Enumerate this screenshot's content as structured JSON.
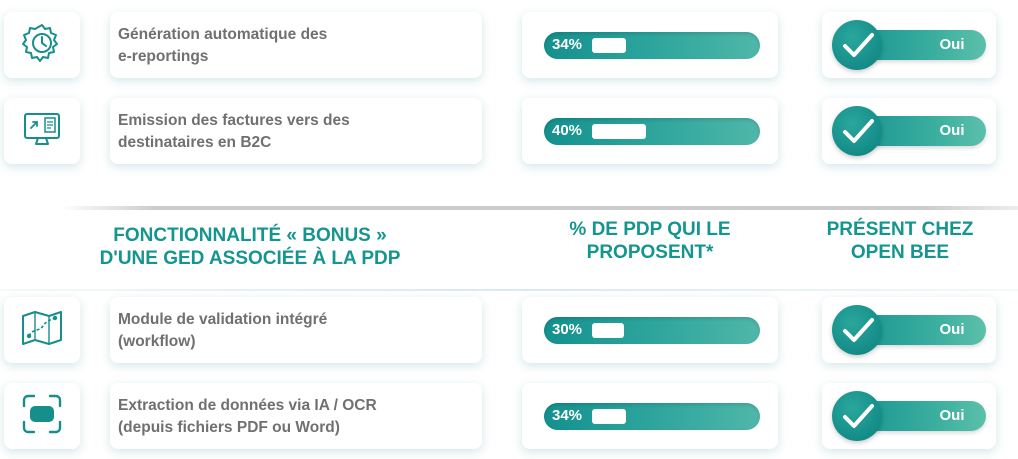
{
  "top_rows": [
    {
      "icon": "clock-gear-icon",
      "label": "Génération automatique des\ne-reportings",
      "percent": "34%",
      "percent_value": 34,
      "status": "Oui"
    },
    {
      "icon": "monitor-invoice-icon",
      "label": "Emission des factures vers des\ndestinataires en B2C",
      "percent": "40%",
      "percent_value": 40,
      "status": "Oui"
    }
  ],
  "headers": {
    "feature": "FONCTIONNALITÉ « BONUS »\nD'UNE GED ASSOCIÉE À LA PDP",
    "percent": "% DE PDP QUI LE\nPROPOSENT*",
    "present": "PRÉSENT CHEZ\nOPEN BEE"
  },
  "bottom_rows": [
    {
      "icon": "map-route-icon",
      "label": "Module de validation intégré\n(workflow)",
      "percent": "30%",
      "percent_value": 30,
      "status": "Oui"
    },
    {
      "icon": "scan-frame-icon",
      "label": "Extraction de données via IA / OCR\n(depuis fichiers PDF ou Word)",
      "percent": "34%",
      "percent_value": 34,
      "status": "Oui"
    }
  ],
  "colors": {
    "accent": "#15958f",
    "text": "#707070"
  }
}
